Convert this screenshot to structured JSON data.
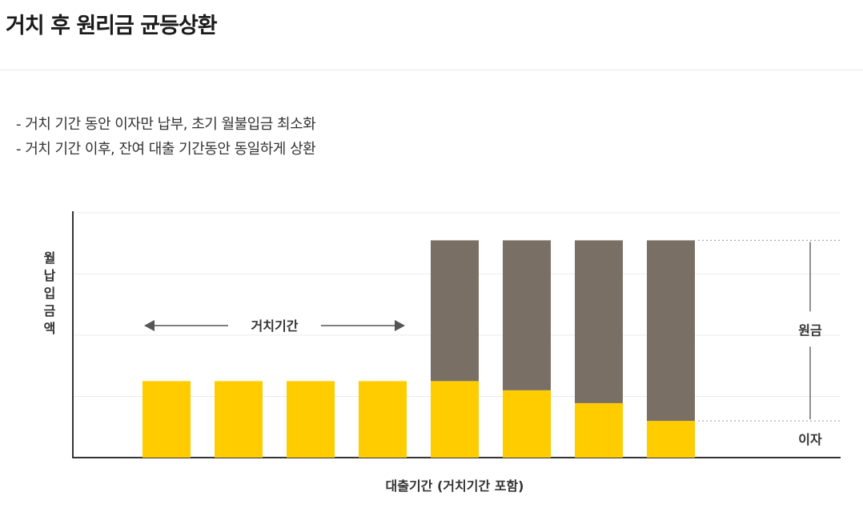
{
  "page": {
    "title": "거치 후 원리금 균등상환"
  },
  "description": {
    "items": [
      "- 거치 기간 동안 이자만 납부, 초기 월불입금 최소화",
      "- 거치 기간 이후, 잔여 대출 기간동안 동일하게 상환"
    ]
  },
  "colors": {
    "interest": "#ffcc00",
    "principal": "#7a6f65",
    "axis": "#333333",
    "grid": "#ebebeb",
    "annotation": "#555555"
  },
  "chart_data": {
    "type": "bar",
    "stacked": true,
    "ylabel": "월납입금액",
    "xlabel": "대출기간 (거치기간 포함)",
    "categories": [
      "",
      "",
      "",
      "",
      "",
      "",
      "",
      ""
    ],
    "series": [
      {
        "name": "이자",
        "color": "#ffcc00",
        "values": [
          1.25,
          1.25,
          1.25,
          1.25,
          1.25,
          1.1,
          0.89,
          0.6
        ]
      },
      {
        "name": "원금",
        "color": "#7a6f65",
        "values": [
          0,
          0,
          0,
          0,
          2.3,
          2.45,
          2.66,
          2.95
        ]
      }
    ],
    "ylim": [
      0,
      4
    ],
    "grid": true,
    "annotations": {
      "grace_period_label": "거치기간",
      "grace_period_bars": [
        0,
        3
      ],
      "principal_label": "원금",
      "interest_label": "이자"
    }
  }
}
